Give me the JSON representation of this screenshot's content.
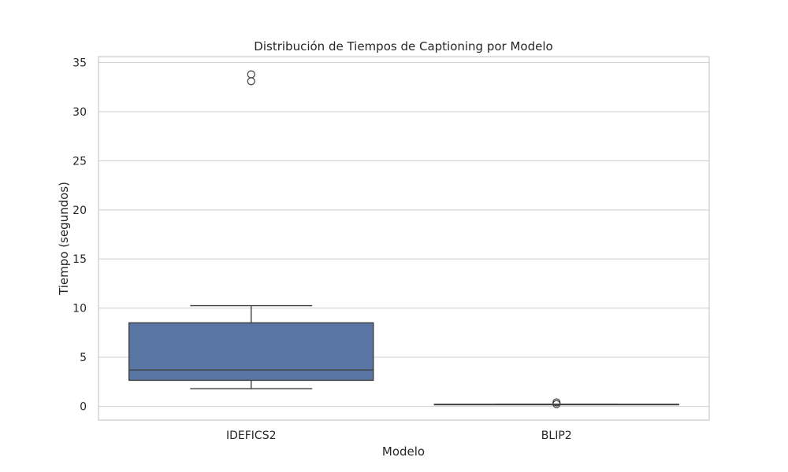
{
  "chart_data": {
    "type": "box",
    "title": "Distribución de Tiempos de Captioning por Modelo",
    "xlabel": "Modelo",
    "ylabel": "Tiempo (segundos)",
    "categories": [
      "IDEFICS2",
      "BLIP2"
    ],
    "ylim": [
      -1.4,
      35.6
    ],
    "yticks": [
      0,
      5,
      10,
      15,
      20,
      25,
      30,
      35
    ],
    "grid": true,
    "box_color": "#5875a4",
    "line_color": "#3d3d3d",
    "grid_color": "#d3d3d3",
    "boxes": [
      {
        "category": "IDEFICS2",
        "whisker_low": 1.8,
        "q1": 2.65,
        "median": 3.7,
        "q3": 8.5,
        "whisker_high": 10.25,
        "outliers": [
          33.8,
          33.1
        ]
      },
      {
        "category": "BLIP2",
        "whisker_low": 0.2,
        "q1": 0.2,
        "median": 0.2,
        "q3": 0.2,
        "whisker_high": 0.2,
        "outliers": [
          0.22,
          0.4
        ]
      }
    ]
  }
}
